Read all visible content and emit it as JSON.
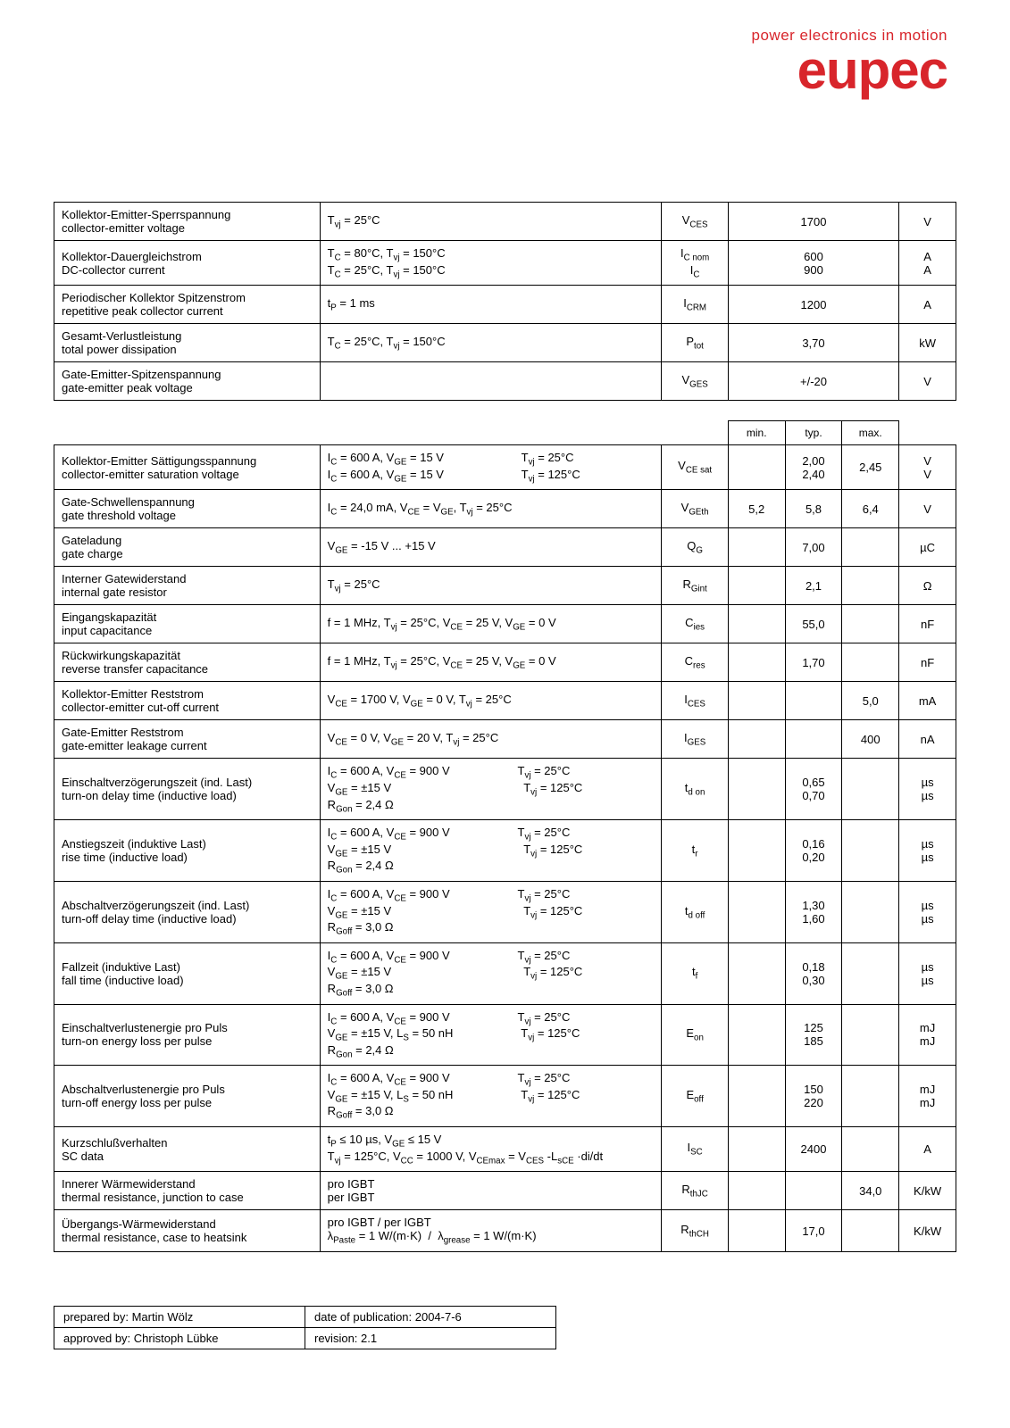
{
  "brand": {
    "tagline": "power electronics in motion",
    "word": "eupec",
    "color": "#d8252b"
  },
  "col_widths": {
    "param": 280,
    "cond": 360,
    "sym": 70,
    "min": 60,
    "typ": 60,
    "max": 60,
    "unit": 60
  },
  "table1": {
    "rows": [
      {
        "param_de": "Kollektor-Emitter-Sperrspannung",
        "param_en": "collector-emitter voltage",
        "cond": "T<sub>vj</sub> = 25°C",
        "sym": "V<sub>CES</sub>",
        "val": "1700",
        "unit": "V"
      },
      {
        "param_de": "Kollektor-Dauergleichstrom",
        "param_en": "DC-collector current",
        "cond": "T<sub>C</sub> = 80°C, T<sub>vj</sub> = 150°C<br>T<sub>C</sub> = 25°C, T<sub>vj</sub> = 150°C",
        "sym": "I<sub>C nom</sub><br>I<sub>C</sub>",
        "val": "600<br>900",
        "unit": "A<br>A"
      },
      {
        "param_de": "Periodischer Kollektor Spitzenstrom",
        "param_en": "repetitive peak collector current",
        "cond": "t<sub>P</sub> = 1 ms",
        "sym": "I<sub>CRM</sub>",
        "val": "1200",
        "unit": "A"
      },
      {
        "param_de": "Gesamt-Verlustleistung",
        "param_en": "total power dissipation",
        "cond": "T<sub>C</sub> = 25°C, T<sub>vj</sub> = 150°C",
        "sym": "P<sub>tot</sub>",
        "val": "3,70",
        "unit": "kW"
      },
      {
        "param_de": "Gate-Emitter-Spitzenspannung",
        "param_en": "gate-emitter peak voltage",
        "cond": "",
        "sym": "V<sub>GES</sub>",
        "val": "+/-20",
        "unit": "V"
      }
    ]
  },
  "table2": {
    "header": {
      "min": "min.",
      "typ": "typ.",
      "max": "max."
    },
    "rows": [
      {
        "param_de": "Kollektor-Emitter Sättigungsspannung",
        "param_en": "collector-emitter saturation voltage",
        "cond": "I<sub>C</sub> = 600 A, V<sub>GE</sub> = 15 V&nbsp;&nbsp;&nbsp;&nbsp;&nbsp;&nbsp;&nbsp;&nbsp;&nbsp;&nbsp;&nbsp;&nbsp;&nbsp;&nbsp;&nbsp;&nbsp;&nbsp;&nbsp;&nbsp;&nbsp;&nbsp;&nbsp;&nbsp;&nbsp;T<sub>vj</sub> = 25°C<br>I<sub>C</sub> = 600 A, V<sub>GE</sub> = 15 V&nbsp;&nbsp;&nbsp;&nbsp;&nbsp;&nbsp;&nbsp;&nbsp;&nbsp;&nbsp;&nbsp;&nbsp;&nbsp;&nbsp;&nbsp;&nbsp;&nbsp;&nbsp;&nbsp;&nbsp;&nbsp;&nbsp;&nbsp;&nbsp;T<sub>vj</sub> = 125°C",
        "sym": "V<sub>CE sat</sub>",
        "min": "",
        "typ": "2,00<br>2,40",
        "max": "2,45",
        "unit": "V<br>V"
      },
      {
        "param_de": "Gate-Schwellenspannung",
        "param_en": "gate threshold voltage",
        "cond": "I<sub>C</sub> = 24,0 mA, V<sub>CE</sub> = V<sub>GE</sub>, T<sub>vj</sub> = 25°C",
        "sym": "V<sub>GEth</sub>",
        "min": "5,2",
        "typ": "5,8",
        "max": "6,4",
        "unit": "V"
      },
      {
        "param_de": "Gateladung",
        "param_en": "gate charge",
        "cond": "V<sub>GE</sub> = -15 V ... +15 V",
        "sym": "Q<sub>G</sub>",
        "min": "",
        "typ": "7,00",
        "max": "",
        "unit": "µC"
      },
      {
        "param_de": "Interner Gatewiderstand",
        "param_en": "internal gate resistor",
        "cond": "T<sub>vj</sub> = 25°C",
        "sym": "R<sub>Gint</sub>",
        "min": "",
        "typ": "2,1",
        "max": "",
        "unit": "Ω"
      },
      {
        "param_de": "Eingangskapazität",
        "param_en": "input capacitance",
        "cond": "f = 1 MHz, T<sub>vj</sub> = 25°C, V<sub>CE</sub> = 25 V, V<sub>GE</sub> = 0 V",
        "sym": "C<sub>ies</sub>",
        "min": "",
        "typ": "55,0",
        "max": "",
        "unit": "nF"
      },
      {
        "param_de": "Rückwirkungskapazität",
        "param_en": "reverse transfer capacitance",
        "cond": "f = 1 MHz, T<sub>vj</sub> = 25°C, V<sub>CE</sub> = 25 V, V<sub>GE</sub> = 0 V",
        "sym": "C<sub>res</sub>",
        "min": "",
        "typ": "1,70",
        "max": "",
        "unit": "nF"
      },
      {
        "param_de": "Kollektor-Emitter Reststrom",
        "param_en": "collector-emitter cut-off current",
        "cond": "V<sub>CE</sub> = 1700 V, V<sub>GE</sub> = 0 V, T<sub>vj</sub> = 25°C",
        "sym": "I<sub>CES</sub>",
        "min": "",
        "typ": "",
        "max": "5,0",
        "unit": "mA"
      },
      {
        "param_de": "Gate-Emitter Reststrom",
        "param_en": "gate-emitter leakage current",
        "cond": "V<sub>CE</sub> = 0 V, V<sub>GE</sub> = 20 V, T<sub>vj</sub> = 25°C",
        "sym": "I<sub>GES</sub>",
        "min": "",
        "typ": "",
        "max": "400",
        "unit": "nA"
      },
      {
        "param_de": "Einschaltverzögerungszeit (ind. Last)",
        "param_en": "turn-on delay time (inductive load)",
        "cond": "I<sub>C</sub> = 600 A, V<sub>CE</sub> = 900 V&nbsp;&nbsp;&nbsp;&nbsp;&nbsp;&nbsp;&nbsp;&nbsp;&nbsp;&nbsp;&nbsp;&nbsp;&nbsp;&nbsp;&nbsp;&nbsp;&nbsp;&nbsp;&nbsp;&nbsp;&nbsp;T<sub>vj</sub> = 25°C<br>V<sub>GE</sub> = ±15 V&nbsp;&nbsp;&nbsp;&nbsp;&nbsp;&nbsp;&nbsp;&nbsp;&nbsp;&nbsp;&nbsp;&nbsp;&nbsp;&nbsp;&nbsp;&nbsp;&nbsp;&nbsp;&nbsp;&nbsp;&nbsp;&nbsp;&nbsp;&nbsp;&nbsp;&nbsp;&nbsp;&nbsp;&nbsp;&nbsp;&nbsp;&nbsp;&nbsp;&nbsp;&nbsp;&nbsp;&nbsp;&nbsp;&nbsp;&nbsp;&nbsp;T<sub>vj</sub> = 125°C<br>R<sub>Gon</sub> = 2,4 Ω",
        "sym": "t<sub>d on</sub>",
        "min": "",
        "typ": "0,65<br>0,70",
        "max": "",
        "unit": "µs<br>µs"
      },
      {
        "param_de": "Anstiegszeit (induktive Last)",
        "param_en": "rise time (inductive load)",
        "cond": "I<sub>C</sub> = 600 A, V<sub>CE</sub> = 900 V&nbsp;&nbsp;&nbsp;&nbsp;&nbsp;&nbsp;&nbsp;&nbsp;&nbsp;&nbsp;&nbsp;&nbsp;&nbsp;&nbsp;&nbsp;&nbsp;&nbsp;&nbsp;&nbsp;&nbsp;&nbsp;T<sub>vj</sub> = 25°C<br>V<sub>GE</sub> = ±15 V&nbsp;&nbsp;&nbsp;&nbsp;&nbsp;&nbsp;&nbsp;&nbsp;&nbsp;&nbsp;&nbsp;&nbsp;&nbsp;&nbsp;&nbsp;&nbsp;&nbsp;&nbsp;&nbsp;&nbsp;&nbsp;&nbsp;&nbsp;&nbsp;&nbsp;&nbsp;&nbsp;&nbsp;&nbsp;&nbsp;&nbsp;&nbsp;&nbsp;&nbsp;&nbsp;&nbsp;&nbsp;&nbsp;&nbsp;&nbsp;&nbsp;T<sub>vj</sub> = 125°C<br>R<sub>Gon</sub> = 2,4 Ω",
        "sym": "t<sub>r</sub>",
        "min": "",
        "typ": "0,16<br>0,20",
        "max": "",
        "unit": "µs<br>µs"
      },
      {
        "param_de": "Abschaltverzögerungszeit (ind. Last)",
        "param_en": "turn-off delay time (inductive load)",
        "cond": "I<sub>C</sub> = 600 A, V<sub>CE</sub> = 900 V&nbsp;&nbsp;&nbsp;&nbsp;&nbsp;&nbsp;&nbsp;&nbsp;&nbsp;&nbsp;&nbsp;&nbsp;&nbsp;&nbsp;&nbsp;&nbsp;&nbsp;&nbsp;&nbsp;&nbsp;&nbsp;T<sub>vj</sub> = 25°C<br>V<sub>GE</sub> = ±15 V&nbsp;&nbsp;&nbsp;&nbsp;&nbsp;&nbsp;&nbsp;&nbsp;&nbsp;&nbsp;&nbsp;&nbsp;&nbsp;&nbsp;&nbsp;&nbsp;&nbsp;&nbsp;&nbsp;&nbsp;&nbsp;&nbsp;&nbsp;&nbsp;&nbsp;&nbsp;&nbsp;&nbsp;&nbsp;&nbsp;&nbsp;&nbsp;&nbsp;&nbsp;&nbsp;&nbsp;&nbsp;&nbsp;&nbsp;&nbsp;&nbsp;T<sub>vj</sub> = 125°C<br>R<sub>Goff</sub> = 3,0 Ω",
        "sym": "t<sub>d off</sub>",
        "min": "",
        "typ": "1,30<br>1,60",
        "max": "",
        "unit": "µs<br>µs"
      },
      {
        "param_de": "Fallzeit (induktive Last)",
        "param_en": "fall time (inductive load)",
        "cond": "I<sub>C</sub> = 600 A, V<sub>CE</sub> = 900 V&nbsp;&nbsp;&nbsp;&nbsp;&nbsp;&nbsp;&nbsp;&nbsp;&nbsp;&nbsp;&nbsp;&nbsp;&nbsp;&nbsp;&nbsp;&nbsp;&nbsp;&nbsp;&nbsp;&nbsp;&nbsp;T<sub>vj</sub> = 25°C<br>V<sub>GE</sub> = ±15 V&nbsp;&nbsp;&nbsp;&nbsp;&nbsp;&nbsp;&nbsp;&nbsp;&nbsp;&nbsp;&nbsp;&nbsp;&nbsp;&nbsp;&nbsp;&nbsp;&nbsp;&nbsp;&nbsp;&nbsp;&nbsp;&nbsp;&nbsp;&nbsp;&nbsp;&nbsp;&nbsp;&nbsp;&nbsp;&nbsp;&nbsp;&nbsp;&nbsp;&nbsp;&nbsp;&nbsp;&nbsp;&nbsp;&nbsp;&nbsp;&nbsp;T<sub>vj</sub> = 125°C<br>R<sub>Goff</sub> = 3,0 Ω",
        "sym": "t<sub>f</sub>",
        "min": "",
        "typ": "0,18<br>0,30",
        "max": "",
        "unit": "µs<br>µs"
      },
      {
        "param_de": "Einschaltverlustenergie pro Puls",
        "param_en": "turn-on energy loss per pulse",
        "cond": "I<sub>C</sub> = 600 A, V<sub>CE</sub> = 900 V&nbsp;&nbsp;&nbsp;&nbsp;&nbsp;&nbsp;&nbsp;&nbsp;&nbsp;&nbsp;&nbsp;&nbsp;&nbsp;&nbsp;&nbsp;&nbsp;&nbsp;&nbsp;&nbsp;&nbsp;&nbsp;T<sub>vj</sub> = 25°C<br>V<sub>GE</sub> = ±15 V, L<sub>S</sub> = 50 nH&nbsp;&nbsp;&nbsp;&nbsp;&nbsp;&nbsp;&nbsp;&nbsp;&nbsp;&nbsp;&nbsp;&nbsp;&nbsp;&nbsp;&nbsp;&nbsp;&nbsp;&nbsp;&nbsp;&nbsp;&nbsp;T<sub>vj</sub> = 125°C<br>R<sub>Gon</sub> = 2,4 Ω",
        "sym": "E<sub>on</sub>",
        "min": "",
        "typ": "125<br>185",
        "max": "",
        "unit": "mJ<br>mJ"
      },
      {
        "param_de": "Abschaltverlustenergie pro Puls",
        "param_en": "turn-off energy loss per pulse",
        "cond": "I<sub>C</sub> = 600 A, V<sub>CE</sub> = 900 V&nbsp;&nbsp;&nbsp;&nbsp;&nbsp;&nbsp;&nbsp;&nbsp;&nbsp;&nbsp;&nbsp;&nbsp;&nbsp;&nbsp;&nbsp;&nbsp;&nbsp;&nbsp;&nbsp;&nbsp;&nbsp;T<sub>vj</sub> = 25°C<br>V<sub>GE</sub> = ±15 V, L<sub>S</sub> = 50 nH&nbsp;&nbsp;&nbsp;&nbsp;&nbsp;&nbsp;&nbsp;&nbsp;&nbsp;&nbsp;&nbsp;&nbsp;&nbsp;&nbsp;&nbsp;&nbsp;&nbsp;&nbsp;&nbsp;&nbsp;&nbsp;T<sub>vj</sub> = 125°C<br>R<sub>Goff</sub> = 3,0 Ω",
        "sym": "E<sub>off</sub>",
        "min": "",
        "typ": "150<br>220",
        "max": "",
        "unit": "mJ<br>mJ"
      },
      {
        "param_de": "Kurzschlußverhalten",
        "param_en": "SC data",
        "cond": "t<sub>P</sub> ≤ 10 µs, V<sub>GE</sub> ≤ 15 V<br>T<sub>vj</sub> = 125°C, V<sub>CC</sub> = 1000 V, V<sub>CEmax</sub> = V<sub>CES</sub> -L<sub>sCE</sub> ·di/dt",
        "sym": "I<sub>SC</sub>",
        "min": "",
        "typ": "2400",
        "max": "",
        "unit": "A"
      },
      {
        "param_de": "Innerer Wärmewiderstand",
        "param_en": "thermal resistance, junction to case",
        "cond": "pro IGBT<br>per IGBT",
        "sym": "R<sub>thJC</sub>",
        "min": "",
        "typ": "",
        "max": "34,0",
        "unit": "K/kW"
      },
      {
        "param_de": "Übergangs-Wärmewiderstand",
        "param_en": "thermal resistance, case to heatsink",
        "cond": "pro IGBT / per IGBT<br>λ<sub>Paste</sub> = 1 W/(m·K)&nbsp;&nbsp;/&nbsp;&nbsp;λ<sub>grease</sub> = 1 W/(m·K)",
        "sym": "R<sub>thCH</sub>",
        "min": "",
        "typ": "17,0",
        "max": "",
        "unit": "K/kW"
      }
    ]
  },
  "footer": {
    "prepared_label": "prepared by: Martin Wölz",
    "date_label": "date of publication: 2004-7-6",
    "approved_label": "approved by: Christoph Lübke",
    "revision_label": "revision: 2.1"
  }
}
